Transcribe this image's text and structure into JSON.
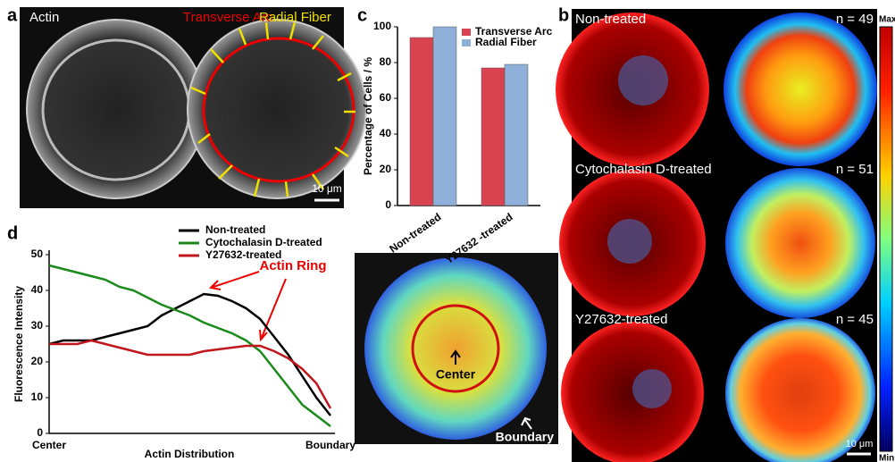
{
  "panel_a": {
    "label": "a",
    "channel": "Actin",
    "arc_label": "Transverse Arc",
    "fiber_label": "Radial Fiber",
    "scale_bar": "10 μm"
  },
  "panel_b": {
    "label": "b",
    "rows": [
      {
        "name": "Non-treated",
        "n": "n = 49"
      },
      {
        "name": "Cytochalasin D-treated",
        "n": "n = 51"
      },
      {
        "name": "Y27632-treated",
        "n": "n = 45"
      }
    ],
    "colorbar_max": "Max",
    "colorbar_min": "Min",
    "scale_bar": "10 μm"
  },
  "panel_c_label": "c",
  "panel_d_label": "d",
  "heatmap_inset": {
    "center": "Center",
    "boundary": "Boundary"
  },
  "chart_data": [
    {
      "type": "bar",
      "categories": [
        "Non-treated",
        "Y27632 -treated"
      ],
      "y_label": "Percentage of Cells / %",
      "series": [
        {
          "name": "Transverse Arc",
          "color": "#d9434f",
          "values": [
            94,
            77
          ]
        },
        {
          "name": "Radial Fiber",
          "color": "#8fb0d8",
          "values": [
            100,
            79
          ]
        }
      ],
      "ylim": [
        0,
        100
      ],
      "yticks": [
        0,
        20,
        40,
        60,
        80,
        100
      ],
      "legend": "upper right"
    },
    {
      "type": "line",
      "x_label": "Actin Distribution",
      "y_label": "Fluorescence Intensity",
      "categories": [
        "Center",
        null,
        null,
        null,
        null,
        null,
        null,
        null,
        null,
        null,
        null,
        null,
        null,
        null,
        null,
        null,
        null,
        null,
        null,
        null,
        "Boundary"
      ],
      "series": [
        {
          "name": "Non-treated",
          "color": "#000000",
          "values": [
            25,
            26,
            26,
            26,
            27,
            28,
            29,
            30,
            33,
            35,
            37,
            39,
            38.5,
            37,
            35,
            32,
            27,
            22,
            16,
            10,
            5
          ]
        },
        {
          "name": "Cytochalasin D-treated",
          "color": "#1a8a1a",
          "values": [
            47,
            46,
            45,
            44,
            43,
            41,
            40,
            38,
            36,
            34.5,
            33,
            31,
            29.5,
            28,
            26,
            23,
            18,
            13,
            8,
            5,
            2
          ]
        },
        {
          "name": "Y27632-treated",
          "color": "#c0161c",
          "values": [
            25,
            25,
            25,
            26,
            25,
            24,
            23,
            22,
            22,
            22,
            22,
            23,
            23.5,
            24,
            24.5,
            24.5,
            23,
            21,
            18,
            14,
            7
          ]
        }
      ],
      "ylim": [
        0,
        50
      ],
      "yticks": [
        0,
        10,
        20,
        30,
        40,
        50
      ],
      "annotation": "Actin Ring",
      "legend": "upper center"
    }
  ]
}
